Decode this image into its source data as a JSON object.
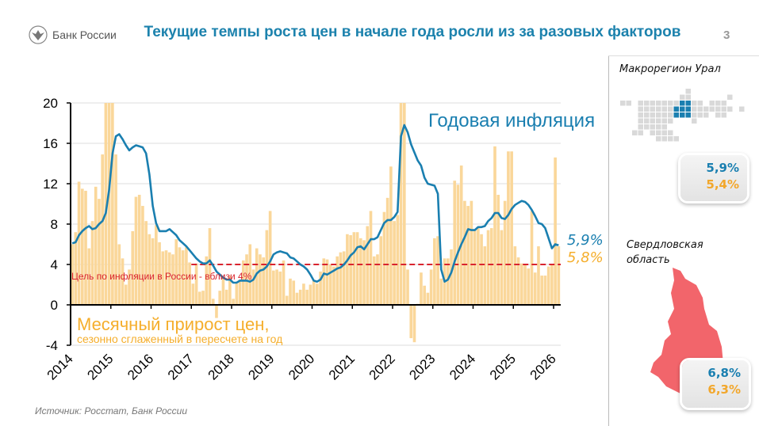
{
  "header": {
    "logo_text": "Банк России",
    "title": "Текущие темпы роста цен в начале года росли из за разовых факторов",
    "page_number": "3"
  },
  "chart_data": {
    "type": "bar+line",
    "x_start": "2014-01",
    "x_tick_labels": [
      "2014",
      "2015",
      "2016",
      "2017",
      "2018",
      "2019",
      "2020",
      "2021",
      "2022",
      "2023",
      "2024",
      "2025",
      "2026"
    ],
    "y_tick_labels": [
      "20",
      "16",
      "12",
      "8",
      "4",
      "0",
      "-4"
    ],
    "ylim": [
      -4,
      20
    ],
    "grid": true,
    "target_line": {
      "value": 4,
      "label": "Цель по инфляции в России - вблизи 4%",
      "color": "#d9232e"
    },
    "series": [
      {
        "name": "Месячный прирост цен,",
        "subtitle": "сезонно сглаженный в пересчете на год",
        "type": "bar",
        "color": "#fad79a",
        "last_label": "5,8%",
        "values": [
          6.0,
          7.2,
          12.2,
          11.5,
          11.3,
          5.6,
          8.3,
          11.7,
          10.5,
          14.9,
          20,
          20,
          20,
          14.9,
          6.0,
          4.6,
          2.0,
          3.5,
          7.3,
          10.7,
          10.9,
          9.8,
          8.3,
          7.0,
          6.6,
          7.9,
          6.2,
          5.3,
          5.4,
          5.2,
          5.0,
          6.5,
          5.7,
          5.4,
          5.7,
          4.2,
          2.1,
          4.1,
          1.3,
          1.4,
          4.8,
          7.6,
          0.6,
          -1.3,
          1.4,
          2.6,
          1.5,
          2.9,
          0.6,
          2.1,
          2.5,
          4.4,
          5.0,
          6.0,
          3.5,
          5.6,
          5.0,
          4.7,
          7.4,
          9.3,
          3.4,
          3.5,
          3.3,
          4.4,
          0.9,
          2.6,
          2.4,
          1.2,
          1.5,
          2.1,
          1.5,
          2.0,
          2.4,
          2.1,
          3.3,
          4.6,
          4.5,
          4.0,
          3.8,
          4.8,
          5.2,
          5.3,
          7.0,
          6.9,
          7.2,
          7.2,
          6.6,
          6.4,
          7.8,
          9.3,
          4.8,
          5.0,
          6.8,
          9.2,
          10.6,
          13.7,
          8.3,
          8.9,
          20,
          20,
          3.5,
          -3.3,
          -3.7,
          0.1,
          3.2,
          1.9,
          1.2,
          3.5,
          6.6,
          6.8,
          2.6,
          4.6,
          4.6,
          5.5,
          12.3,
          11.9,
          13.8,
          10.3,
          9.8,
          10.3,
          7.4,
          7.6,
          7.0,
          5.8,
          7.4,
          7.6,
          15.7,
          10.9,
          7.4,
          10.3,
          15.2,
          15.2,
          5.8,
          4.7,
          4.1,
          4.0,
          3.6,
          9.3,
          3.2,
          5.8,
          2.9,
          2.9,
          3.8,
          4.0,
          14.6,
          5.8
        ]
      },
      {
        "name": "Годовая инфляция",
        "type": "line",
        "color": "#1a7fb0",
        "last_label": "5,9%",
        "values": [
          6.1,
          6.2,
          6.9,
          7.3,
          7.6,
          7.8,
          7.5,
          7.6,
          8.0,
          8.3,
          9.1,
          11.4,
          15.0,
          16.7,
          16.9,
          16.4,
          15.8,
          15.3,
          15.6,
          15.8,
          15.7,
          15.6,
          15.0,
          12.9,
          9.8,
          8.1,
          7.3,
          7.3,
          7.3,
          7.5,
          7.2,
          6.9,
          6.4,
          6.1,
          5.8,
          5.4,
          5.0,
          4.6,
          4.3,
          4.1,
          4.1,
          4.4,
          3.9,
          3.3,
          3.0,
          2.7,
          2.5,
          2.5,
          2.2,
          2.2,
          2.4,
          2.4,
          2.4,
          2.3,
          2.5,
          3.1,
          3.4,
          3.5,
          3.8,
          4.3,
          5.0,
          5.2,
          5.3,
          5.2,
          5.1,
          4.7,
          4.6,
          4.3,
          4.0,
          3.8,
          3.5,
          3.0,
          2.4,
          2.3,
          2.5,
          3.1,
          3.0,
          3.2,
          3.4,
          3.6,
          3.7,
          4.0,
          4.4,
          4.9,
          5.2,
          5.7,
          5.8,
          5.5,
          6.0,
          6.5,
          6.5,
          6.7,
          7.4,
          8.1,
          8.4,
          8.4,
          8.7,
          9.2,
          16.7,
          17.8,
          17.1,
          15.9,
          15.1,
          14.3,
          13.8,
          12.6,
          12.0,
          11.9,
          11.8,
          11.0,
          3.5,
          2.3,
          2.5,
          3.2,
          4.3,
          5.2,
          6.0,
          6.7,
          7.5,
          7.4,
          7.4,
          7.7,
          7.7,
          7.8,
          8.3,
          8.6,
          9.1,
          9.1,
          8.6,
          8.5,
          8.9,
          9.5,
          9.9,
          10.1,
          10.3,
          10.2,
          9.9,
          9.4,
          8.8,
          8.1,
          8.0,
          7.6,
          6.6,
          5.6,
          6.0,
          5.9
        ]
      }
    ]
  },
  "regions": {
    "macroregion": {
      "title": "Макрорегион Урал",
      "annual": "5,9%",
      "monthly": "5,4%"
    },
    "oblast": {
      "title_line1": "Свердловская",
      "title_line2": "область",
      "annual": "6,8%",
      "monthly": "6,3%",
      "map_color": "#f2656b"
    }
  },
  "source": "Источник: Росстат, Банк России"
}
